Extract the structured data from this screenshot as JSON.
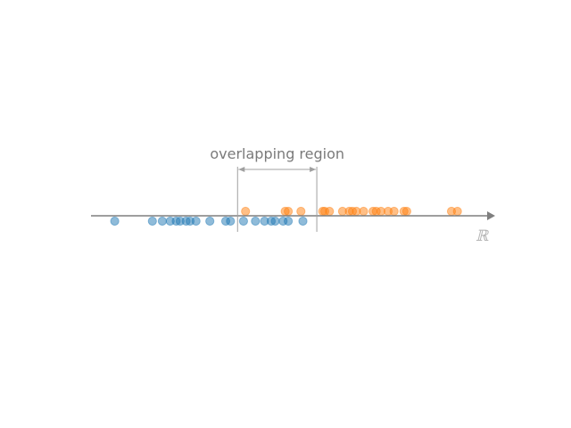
{
  "annotation": {
    "region_label": "overlapping region",
    "region_start": 0.37,
    "region_end": 0.57
  },
  "axis": {
    "symbol": "ℝ",
    "min": 0,
    "max": 1
  },
  "colors": {
    "class_a": "#1f77b4",
    "class_b": "#ff7f0e",
    "axis": "#7f7f7f",
    "bracket": "#a0a0a0"
  },
  "chart_data": {
    "type": "scatter",
    "series": [
      {
        "values": [
          0.06,
          0.155,
          0.18,
          0.2,
          0.215,
          0.225,
          0.24,
          0.25,
          0.265,
          0.3,
          0.34,
          0.352,
          0.385,
          0.415,
          0.438,
          0.455,
          0.465,
          0.485,
          0.498,
          0.535
        ]
      },
      {
        "values": [
          0.39,
          0.49,
          0.498,
          0.53,
          0.585,
          0.59,
          0.602,
          0.635,
          0.652,
          0.66,
          0.67,
          0.688,
          0.712,
          0.72,
          0.732,
          0.75,
          0.765,
          0.79,
          0.797,
          0.91,
          0.925
        ]
      }
    ]
  }
}
